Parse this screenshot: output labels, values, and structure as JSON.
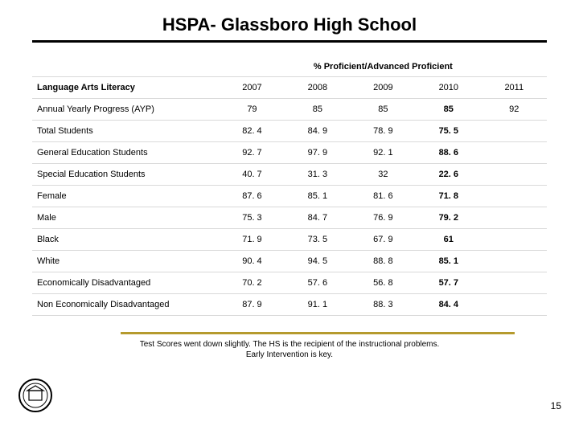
{
  "title": "HSPA- Glassboro High School",
  "table": {
    "section_header": "% Proficient/Advanced Proficient",
    "row_header_label": "Language Arts Literacy",
    "years": [
      "2007",
      "2008",
      "2009",
      "2010",
      "2011"
    ],
    "bold_year_index": 3,
    "rows": [
      {
        "label": "Annual Yearly Progress (AYP)",
        "values": [
          "79",
          "85",
          "85",
          "85",
          "92"
        ]
      },
      {
        "label": "Total Students",
        "values": [
          "82. 4",
          "84. 9",
          "78. 9",
          "75. 5",
          ""
        ]
      },
      {
        "label": "General Education Students",
        "values": [
          "92. 7",
          "97. 9",
          "92. 1",
          "88. 6",
          ""
        ]
      },
      {
        "label": "Special Education Students",
        "values": [
          "40. 7",
          "31. 3",
          "32",
          "22. 6",
          ""
        ]
      },
      {
        "label": "Female",
        "values": [
          "87. 6",
          "85. 1",
          "81. 6",
          "71. 8",
          ""
        ]
      },
      {
        "label": "Male",
        "values": [
          "75. 3",
          "84. 7",
          "76. 9",
          "79. 2",
          ""
        ]
      },
      {
        "label": "Black",
        "values": [
          "71. 9",
          "73. 5",
          "67. 9",
          "61",
          ""
        ]
      },
      {
        "label": "White",
        "values": [
          "90. 4",
          "94. 5",
          "88. 8",
          "85. 1",
          ""
        ]
      },
      {
        "label": "Economically Disadvantaged",
        "values": [
          "70. 2",
          "57. 6",
          "56. 8",
          "57. 7",
          ""
        ]
      },
      {
        "label": "Non Economically Disadvantaged",
        "values": [
          "87. 9",
          "91. 1",
          "88. 3",
          "84. 4",
          ""
        ]
      }
    ]
  },
  "footer": {
    "line1": "Test Scores went down slightly. The HS is the recipient of the instructional problems.",
    "line2": "Early Intervention is key."
  },
  "page_number": "15",
  "colors": {
    "gold_rule": "#b59a2e",
    "grid_line": "#d9d9d9"
  }
}
